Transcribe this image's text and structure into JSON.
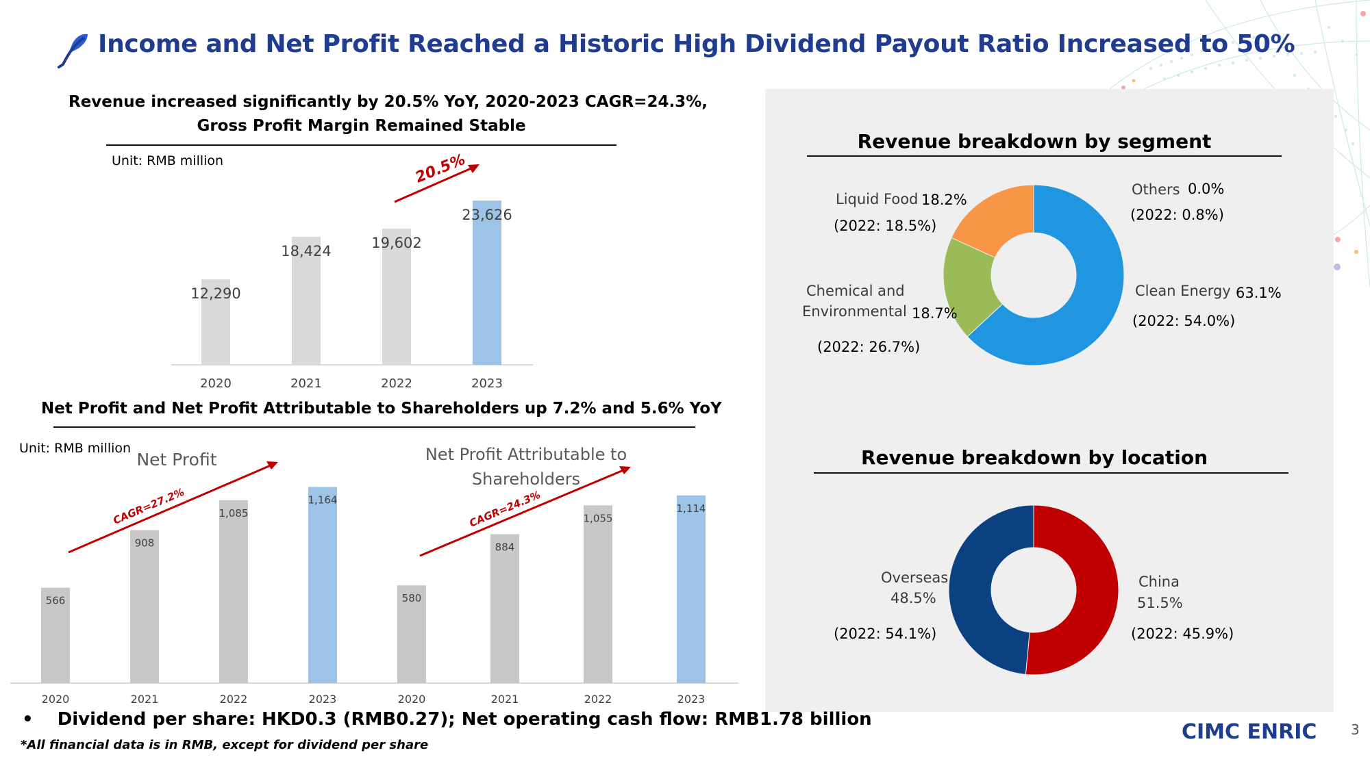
{
  "title": "Income and Net Profit Reached a Historic High  Dividend Payout Ratio Increased to 50%",
  "revenue_section": {
    "heading_line1": "Revenue increased significantly by 20.5% YoY, 2020-2023 CAGR=24.3%,",
    "heading_line2": "Gross Profit Margin Remained Stable",
    "unit": "Unit: RMB million",
    "growth_label": "20.5%"
  },
  "profit_section": {
    "heading": "Net Profit and Net Profit Attributable to Shareholders up 7.2% and 5.6% YoY",
    "unit": "Unit: RMB million",
    "left_cagr": "CAGR=27.2%",
    "right_cagr": "CAGR=24.3%"
  },
  "segment_section": {
    "heading": "Revenue breakdown by segment",
    "labels": {
      "liquid_food": "Liquid Food",
      "liquid_food_pct": "18.2%",
      "liquid_food_prev": "(2022: 18.5%)",
      "others": "Others",
      "others_pct": "0.0%",
      "others_prev": "(2022: 0.8%)",
      "chem_line1": "Chemical and",
      "chem_line2": "Environmental",
      "chem_pct": "18.7%",
      "chem_prev": "(2022: 26.7%)",
      "clean": "Clean Energy",
      "clean_pct": "63.1%",
      "clean_prev": "(2022: 54.0%)"
    }
  },
  "location_section": {
    "heading": "Revenue breakdown by  location",
    "labels": {
      "overseas": "Overseas",
      "overseas_pct": "48.5%",
      "overseas_prev": "(2022: 54.1%)",
      "china": "China",
      "china_pct": "51.5%",
      "china_prev": "(2022: 45.9%)"
    }
  },
  "footer": {
    "bullet": "•",
    "dividend": "Dividend per share: HKD0.3 (RMB0.27); Net operating cash flow: RMB1.78 billion",
    "footnote": "*All financial data is in RMB, except for dividend per share",
    "logo": "CIMC ENRIC",
    "page": "3"
  },
  "colors": {
    "title_blue": "#1f3c8f",
    "bar_grey": "#d9d9d9",
    "bar_grey_dark": "#c8c8c8",
    "bar_highlight": "#9dc3e6",
    "arrow_red": "#c00000",
    "clean_energy": "#2196e0",
    "chemical": "#9bbb59",
    "liquid_food": "#f79646",
    "china": "#c00000",
    "overseas": "#0b4181"
  },
  "chart_data": [
    {
      "type": "bar",
      "title": "",
      "categories": [
        "2020",
        "2021",
        "2022",
        "2023"
      ],
      "values": [
        12290,
        18424,
        19602,
        23626
      ],
      "value_labels": [
        "12,290",
        "18,424",
        "19,602",
        "23,626"
      ],
      "ylim": [
        0,
        26000
      ],
      "highlight_index": 3
    },
    {
      "type": "bar",
      "title": "Net Profit",
      "categories": [
        "2020",
        "2021",
        "2022",
        "2023"
      ],
      "values": [
        566,
        908,
        1085,
        1164
      ],
      "value_labels": [
        "566",
        "908",
        "1,085",
        "1,164"
      ],
      "ylim": [
        0,
        1300
      ],
      "highlight_index": 3
    },
    {
      "type": "bar",
      "title_line1": "Net Profit Attributable to",
      "title_line2": "Shareholders",
      "categories": [
        "2020",
        "2021",
        "2022",
        "2023"
      ],
      "values": [
        580,
        884,
        1055,
        1114
      ],
      "value_labels": [
        "580",
        "884",
        "1,055",
        "1,114"
      ],
      "ylim": [
        0,
        1300
      ],
      "highlight_index": 3
    },
    {
      "type": "pie",
      "title": "Revenue breakdown by segment",
      "labels": [
        "Clean Energy",
        "Chemical and Environmental",
        "Liquid Food",
        "Others"
      ],
      "values": [
        63.1,
        18.7,
        18.2,
        0.0
      ],
      "colors": [
        "#2196e0",
        "#9bbb59",
        "#f79646",
        "#7f7f7f"
      ]
    },
    {
      "type": "pie",
      "title": "Revenue breakdown by  location",
      "labels": [
        "China",
        "Overseas"
      ],
      "values": [
        51.5,
        48.5
      ],
      "colors": [
        "#c00000",
        "#0b4181"
      ]
    }
  ]
}
